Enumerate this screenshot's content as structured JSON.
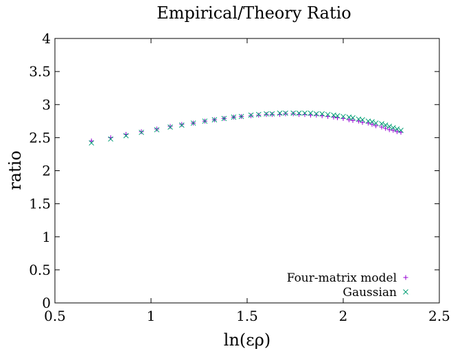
{
  "chart_data": {
    "type": "scatter",
    "title": "Empirical/Theory Ratio",
    "xlabel": "ln(ερ)",
    "ylabel": "ratio",
    "xlim": [
      0.5,
      2.5
    ],
    "ylim": [
      0,
      4
    ],
    "xticks": [
      "0.5",
      "1",
      "1.5",
      "2",
      "2.5"
    ],
    "yticks": [
      "0",
      "0.5",
      "1",
      "1.5",
      "2",
      "2.5",
      "3",
      "3.5",
      "4"
    ],
    "grid": false,
    "legend_position": "bottom-right",
    "series": [
      {
        "name": "Four-matrix model",
        "marker": "plus",
        "color": "#9400d3",
        "x": [
          0.69,
          0.79,
          0.87,
          0.95,
          1.03,
          1.1,
          1.16,
          1.22,
          1.28,
          1.33,
          1.38,
          1.43,
          1.47,
          1.52,
          1.56,
          1.6,
          1.63,
          1.67,
          1.7,
          1.74,
          1.77,
          1.8,
          1.83,
          1.86,
          1.89,
          1.92,
          1.95,
          1.97,
          2.0,
          2.03,
          2.05,
          2.08,
          2.1,
          2.13,
          2.15,
          2.17,
          2.2,
          2.22,
          2.24,
          2.26,
          2.28,
          2.3
        ],
        "y": [
          2.45,
          2.5,
          2.55,
          2.59,
          2.63,
          2.67,
          2.7,
          2.72,
          2.75,
          2.77,
          2.79,
          2.81,
          2.82,
          2.83,
          2.84,
          2.85,
          2.85,
          2.85,
          2.86,
          2.86,
          2.85,
          2.85,
          2.84,
          2.84,
          2.83,
          2.82,
          2.81,
          2.8,
          2.79,
          2.77,
          2.76,
          2.75,
          2.73,
          2.72,
          2.7,
          2.68,
          2.66,
          2.64,
          2.62,
          2.61,
          2.59,
          2.58
        ]
      },
      {
        "name": "Gaussian",
        "marker": "cross",
        "color": "#009e73",
        "x": [
          0.69,
          0.79,
          0.87,
          0.95,
          1.03,
          1.1,
          1.16,
          1.22,
          1.28,
          1.33,
          1.38,
          1.43,
          1.47,
          1.52,
          1.56,
          1.6,
          1.63,
          1.67,
          1.7,
          1.74,
          1.77,
          1.8,
          1.83,
          1.86,
          1.89,
          1.92,
          1.95,
          1.97,
          2.0,
          2.03,
          2.05,
          2.08,
          2.1,
          2.13,
          2.15,
          2.17,
          2.2,
          2.22,
          2.24,
          2.26,
          2.28,
          2.3
        ],
        "y": [
          2.42,
          2.48,
          2.53,
          2.58,
          2.62,
          2.66,
          2.69,
          2.72,
          2.75,
          2.77,
          2.79,
          2.81,
          2.82,
          2.84,
          2.85,
          2.86,
          2.86,
          2.87,
          2.87,
          2.87,
          2.87,
          2.87,
          2.87,
          2.86,
          2.86,
          2.85,
          2.84,
          2.83,
          2.82,
          2.81,
          2.8,
          2.78,
          2.77,
          2.75,
          2.74,
          2.72,
          2.71,
          2.69,
          2.67,
          2.65,
          2.63,
          2.61
        ]
      }
    ]
  }
}
